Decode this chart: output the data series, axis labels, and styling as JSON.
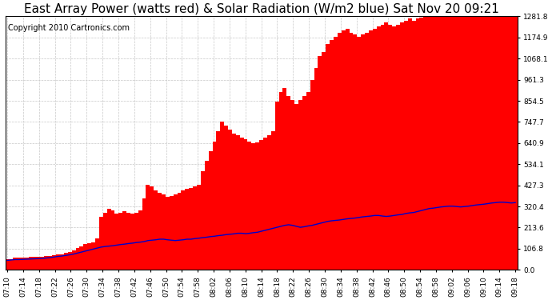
{
  "title": "East Array Power (watts red) & Solar Radiation (W/m2 blue) Sat Nov 20 09:21",
  "copyright": "Copyright 2010 Cartronics.com",
  "bg_color": "#ffffff",
  "plot_bg_color": "#ffffff",
  "grid_color": "#c8c8c8",
  "bar_color": "#ff0000",
  "line_color": "#0000cc",
  "ymin": 0.0,
  "ymax": 1281.8,
  "yticks": [
    0.0,
    106.8,
    213.6,
    320.4,
    427.3,
    534.1,
    640.9,
    747.7,
    854.5,
    961.3,
    1068.1,
    1174.9,
    1281.8
  ],
  "xtick_labels": [
    "07:10",
    "07:14",
    "07:18",
    "07:22",
    "07:26",
    "07:30",
    "07:34",
    "07:38",
    "07:42",
    "07:46",
    "07:50",
    "07:54",
    "07:58",
    "08:02",
    "08:06",
    "08:10",
    "08:14",
    "08:18",
    "08:22",
    "08:26",
    "08:30",
    "08:34",
    "08:38",
    "08:42",
    "08:46",
    "08:50",
    "08:54",
    "08:58",
    "09:02",
    "09:06",
    "09:10",
    "09:14",
    "09:18"
  ],
  "n_xtick_labels": 33,
  "title_fontsize": 11,
  "copyright_fontsize": 7,
  "tick_fontsize": 6.5,
  "power_values": [
    55,
    55,
    60,
    62,
    60,
    62,
    65,
    65,
    65,
    68,
    70,
    72,
    75,
    78,
    80,
    85,
    90,
    100,
    110,
    120,
    130,
    135,
    140,
    160,
    270,
    290,
    310,
    300,
    285,
    290,
    295,
    290,
    285,
    290,
    300,
    360,
    430,
    420,
    400,
    390,
    380,
    370,
    375,
    380,
    390,
    400,
    410,
    415,
    420,
    430,
    500,
    550,
    600,
    650,
    700,
    750,
    730,
    710,
    690,
    680,
    670,
    660,
    650,
    640,
    645,
    655,
    670,
    680,
    700,
    850,
    900,
    920,
    880,
    860,
    840,
    860,
    880,
    900,
    960,
    1020,
    1080,
    1100,
    1140,
    1160,
    1180,
    1200,
    1210,
    1220,
    1200,
    1190,
    1180,
    1190,
    1200,
    1210,
    1220,
    1230,
    1240,
    1250,
    1240,
    1230,
    1240,
    1250,
    1260,
    1270,
    1260,
    1270,
    1275,
    1278,
    1280,
    1281,
    1281,
    1281,
    1281,
    1281,
    1281,
    1281,
    1281,
    1281,
    1281,
    1281,
    1281,
    1281,
    1281,
    1281,
    1281,
    1281,
    1281,
    1281,
    1281,
    1281,
    1281
  ],
  "solar_values": [
    48,
    50,
    52,
    52,
    53,
    54,
    55,
    56,
    57,
    58,
    60,
    62,
    65,
    68,
    70,
    73,
    76,
    80,
    85,
    90,
    95,
    100,
    105,
    110,
    115,
    118,
    120,
    122,
    125,
    128,
    130,
    133,
    135,
    138,
    140,
    143,
    148,
    150,
    152,
    155,
    155,
    152,
    150,
    148,
    150,
    152,
    155,
    155,
    158,
    160,
    163,
    165,
    168,
    170,
    173,
    175,
    178,
    180,
    182,
    185,
    185,
    183,
    185,
    188,
    190,
    195,
    200,
    205,
    210,
    215,
    220,
    225,
    228,
    225,
    220,
    215,
    218,
    222,
    225,
    230,
    235,
    240,
    245,
    248,
    250,
    252,
    255,
    258,
    260,
    262,
    265,
    268,
    270,
    272,
    275,
    275,
    272,
    270,
    272,
    275,
    278,
    280,
    285,
    288,
    290,
    295,
    300,
    305,
    310,
    312,
    315,
    318,
    320,
    322,
    322,
    320,
    318,
    320,
    322,
    325,
    328,
    330,
    332,
    335,
    338,
    340,
    342,
    342,
    340,
    338,
    340
  ]
}
